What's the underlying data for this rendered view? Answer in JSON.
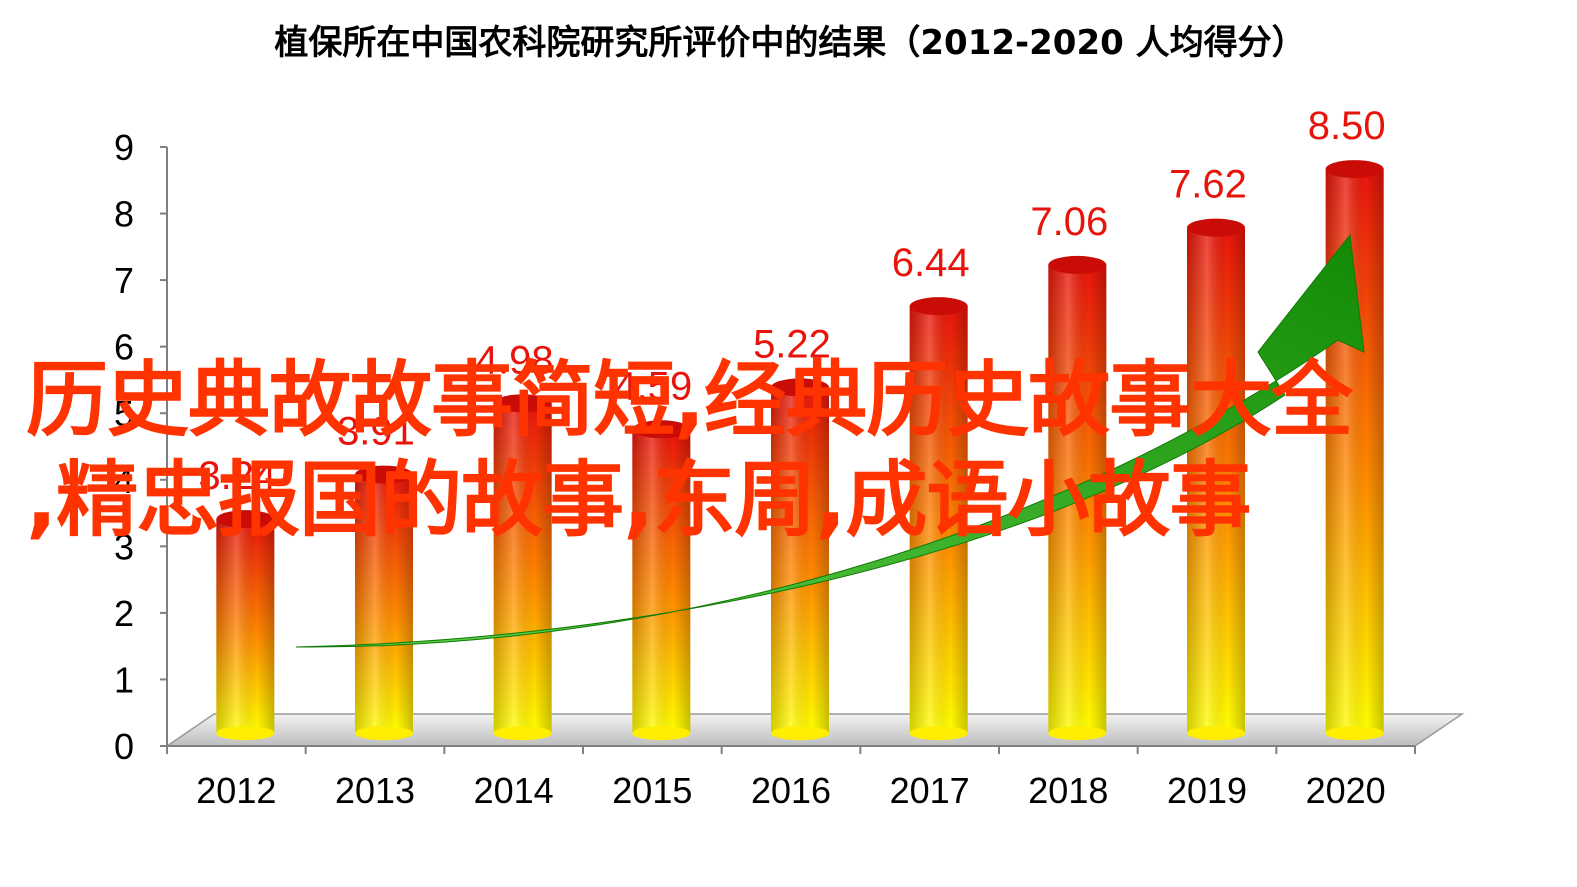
{
  "chart_data": {
    "type": "bar",
    "title": "植保所在中国农科院研究所评价中的结果（2012-2020 人均得分）",
    "xlabel": "",
    "ylabel": "",
    "categories": [
      "2012",
      "2013",
      "2014",
      "2015",
      "2016",
      "2017",
      "2018",
      "2019",
      "2020"
    ],
    "values": [
      3.24,
      3.91,
      4.98,
      4.59,
      5.22,
      6.44,
      7.06,
      7.62,
      8.5
    ],
    "data_labels": [
      "3.24",
      "3.91",
      "4.98",
      "4.59",
      "5.22",
      "6.44",
      "7.06",
      "7.62",
      "8.50"
    ],
    "ylim": [
      0,
      9
    ],
    "yticks": [
      "0",
      "1",
      "2",
      "3",
      "4",
      "5",
      "6",
      "7",
      "8",
      "9"
    ],
    "legend": "none",
    "grid": false,
    "colors": {
      "bar_top": "#e8140c",
      "bar_mid": "#ff8c00",
      "bar_bottom": "#ffff00",
      "label": "#e8140c",
      "arrow": "#1e9a0a"
    }
  },
  "overlay": {
    "line1": "历史典故故事简短,经典历史故事大全",
    "line2": ",精忠报国的故事,东周,成语小故事"
  }
}
